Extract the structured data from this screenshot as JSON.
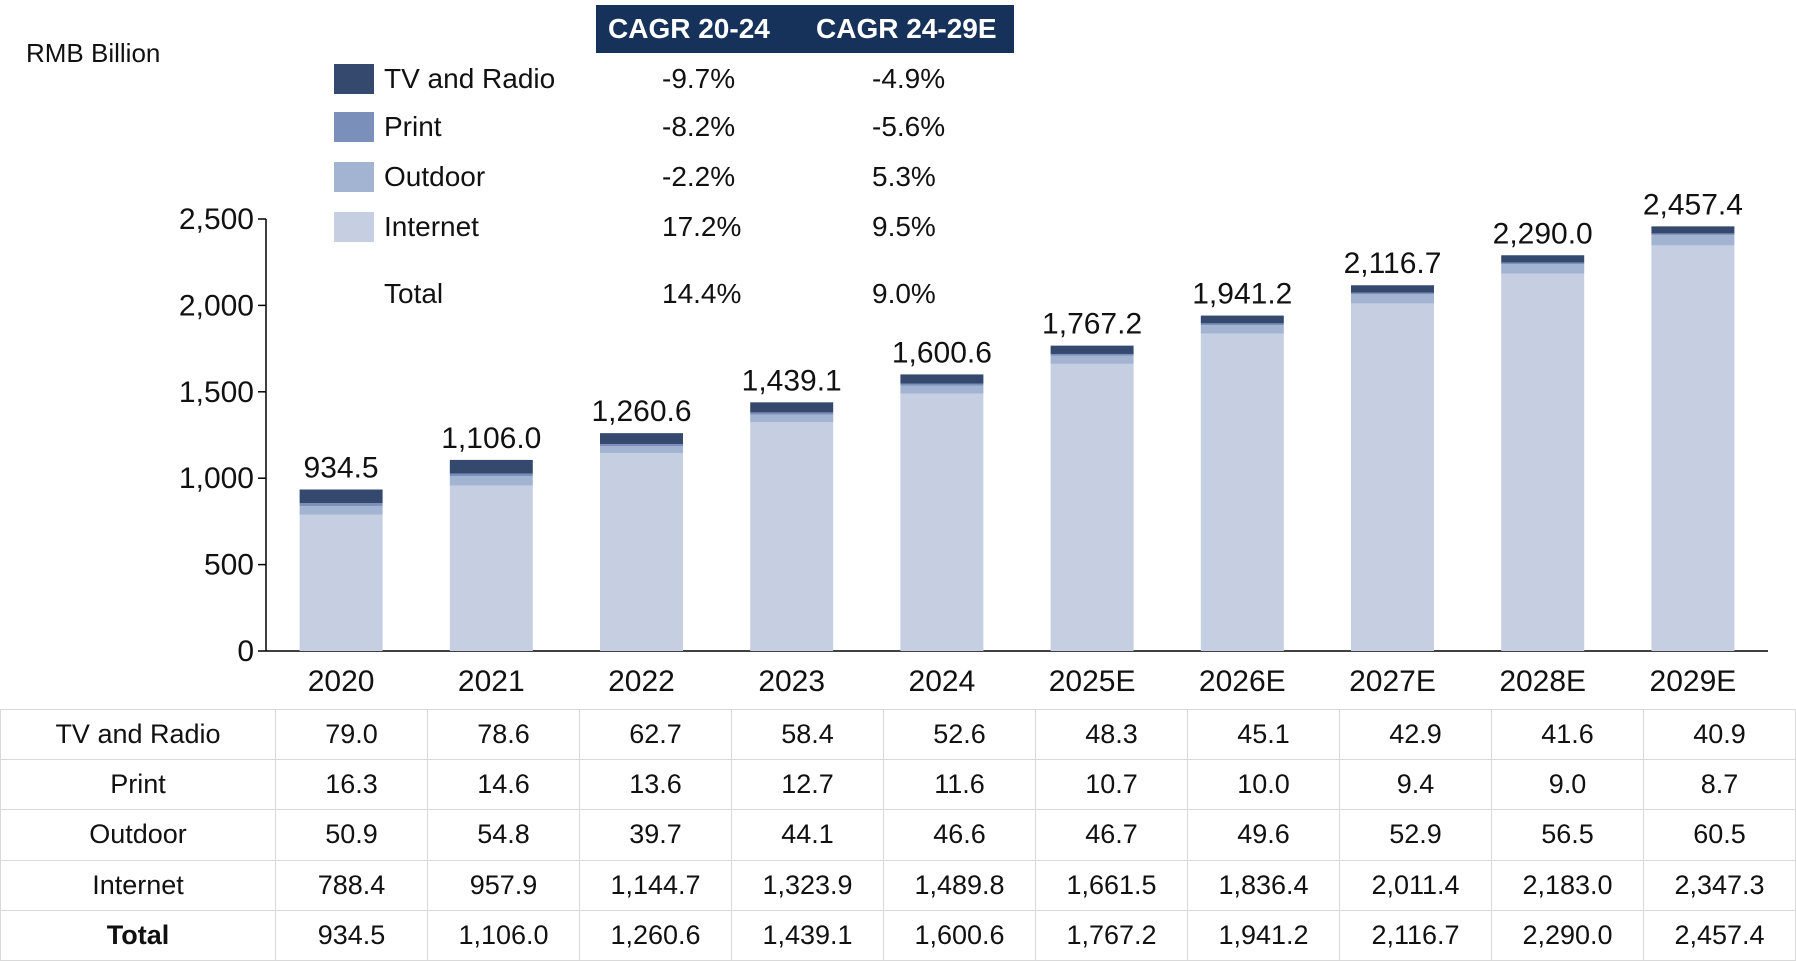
{
  "unit_label": "RMB Billion",
  "cagr_headers": [
    "CAGR 20-24",
    "CAGR 24-29E"
  ],
  "legend": [
    {
      "label": "TV and Radio",
      "color": "#34496d",
      "cagr_20_24": "-9.7%",
      "cagr_24_29e": "-4.9%"
    },
    {
      "label": "Print",
      "color": "#7a8fba",
      "cagr_20_24": "-8.2%",
      "cagr_24_29e": "-5.6%"
    },
    {
      "label": "Outdoor",
      "color": "#a3b4d2",
      "cagr_20_24": "-2.2%",
      "cagr_24_29e": "5.3%"
    },
    {
      "label": "Internet",
      "color": "#c5cfe1",
      "cagr_20_24": "17.2%",
      "cagr_24_29e": "9.5%"
    },
    {
      "label": "Total",
      "color": "",
      "cagr_20_24": "14.4%",
      "cagr_24_29e": "9.0%"
    }
  ],
  "chart_data": {
    "type": "bar",
    "stacked": true,
    "categories": [
      "2020",
      "2021",
      "2022",
      "2023",
      "2024",
      "2025E",
      "2026E",
      "2027E",
      "2028E",
      "2029E"
    ],
    "series": [
      {
        "name": "Internet",
        "color": "#c5cfe1",
        "values": [
          788.4,
          957.9,
          1144.7,
          1323.9,
          1489.8,
          1661.5,
          1836.4,
          2011.4,
          2183.0,
          2347.3
        ]
      },
      {
        "name": "Outdoor",
        "color": "#a3b4d2",
        "values": [
          50.9,
          54.8,
          39.7,
          44.1,
          46.6,
          46.7,
          49.6,
          52.9,
          56.5,
          60.5
        ]
      },
      {
        "name": "Print",
        "color": "#7a8fba",
        "values": [
          16.3,
          14.6,
          13.6,
          12.7,
          11.6,
          10.7,
          10.0,
          9.4,
          9.0,
          8.7
        ]
      },
      {
        "name": "TV and Radio",
        "color": "#34496d",
        "values": [
          79.0,
          78.6,
          62.7,
          58.4,
          52.6,
          48.3,
          45.1,
          42.9,
          41.6,
          40.9
        ]
      }
    ],
    "totals": [
      934.5,
      1106.0,
      1260.6,
      1439.1,
      1600.6,
      1767.2,
      1941.2,
      2116.7,
      2290.0,
      2457.4
    ],
    "total_labels": [
      "934.5",
      "1,106.0",
      "1,260.6",
      "1,439.1",
      "1,600.6",
      "1,767.2",
      "1,941.2",
      "2,116.7",
      "2,290.0",
      "2,457.4"
    ],
    "ylim": [
      0,
      2500
    ],
    "yticks": [
      0,
      500,
      1000,
      1500,
      2000,
      2500
    ],
    "ytick_labels": [
      "0",
      "500",
      "1,000",
      "1,500",
      "2,000",
      "2,500"
    ],
    "ylabel": "RMB Billion",
    "xlabel": "",
    "title": "",
    "grid": false
  },
  "table": {
    "rows": [
      {
        "label": "TV and Radio",
        "values": [
          "79.0",
          "78.6",
          "62.7",
          "58.4",
          "52.6",
          "48.3",
          "45.1",
          "42.9",
          "41.6",
          "40.9"
        ]
      },
      {
        "label": "Print",
        "values": [
          "16.3",
          "14.6",
          "13.6",
          "12.7",
          "11.6",
          "10.7",
          "10.0",
          "9.4",
          "9.0",
          "8.7"
        ]
      },
      {
        "label": "Outdoor",
        "values": [
          "50.9",
          "54.8",
          "39.7",
          "44.1",
          "46.6",
          "46.7",
          "49.6",
          "52.9",
          "56.5",
          "60.5"
        ]
      },
      {
        "label": "Internet",
        "values": [
          "788.4",
          "957.9",
          "1,144.7",
          "1,323.9",
          "1,489.8",
          "1,661.5",
          "1,836.4",
          "2,011.4",
          "2,183.0",
          "2,347.3"
        ]
      },
      {
        "label": "Total",
        "values": [
          "934.5",
          "1,106.0",
          "1,260.6",
          "1,439.1",
          "1,600.6",
          "1,767.2",
          "1,941.2",
          "2,116.7",
          "2,290.0",
          "2,457.4"
        ]
      }
    ]
  }
}
